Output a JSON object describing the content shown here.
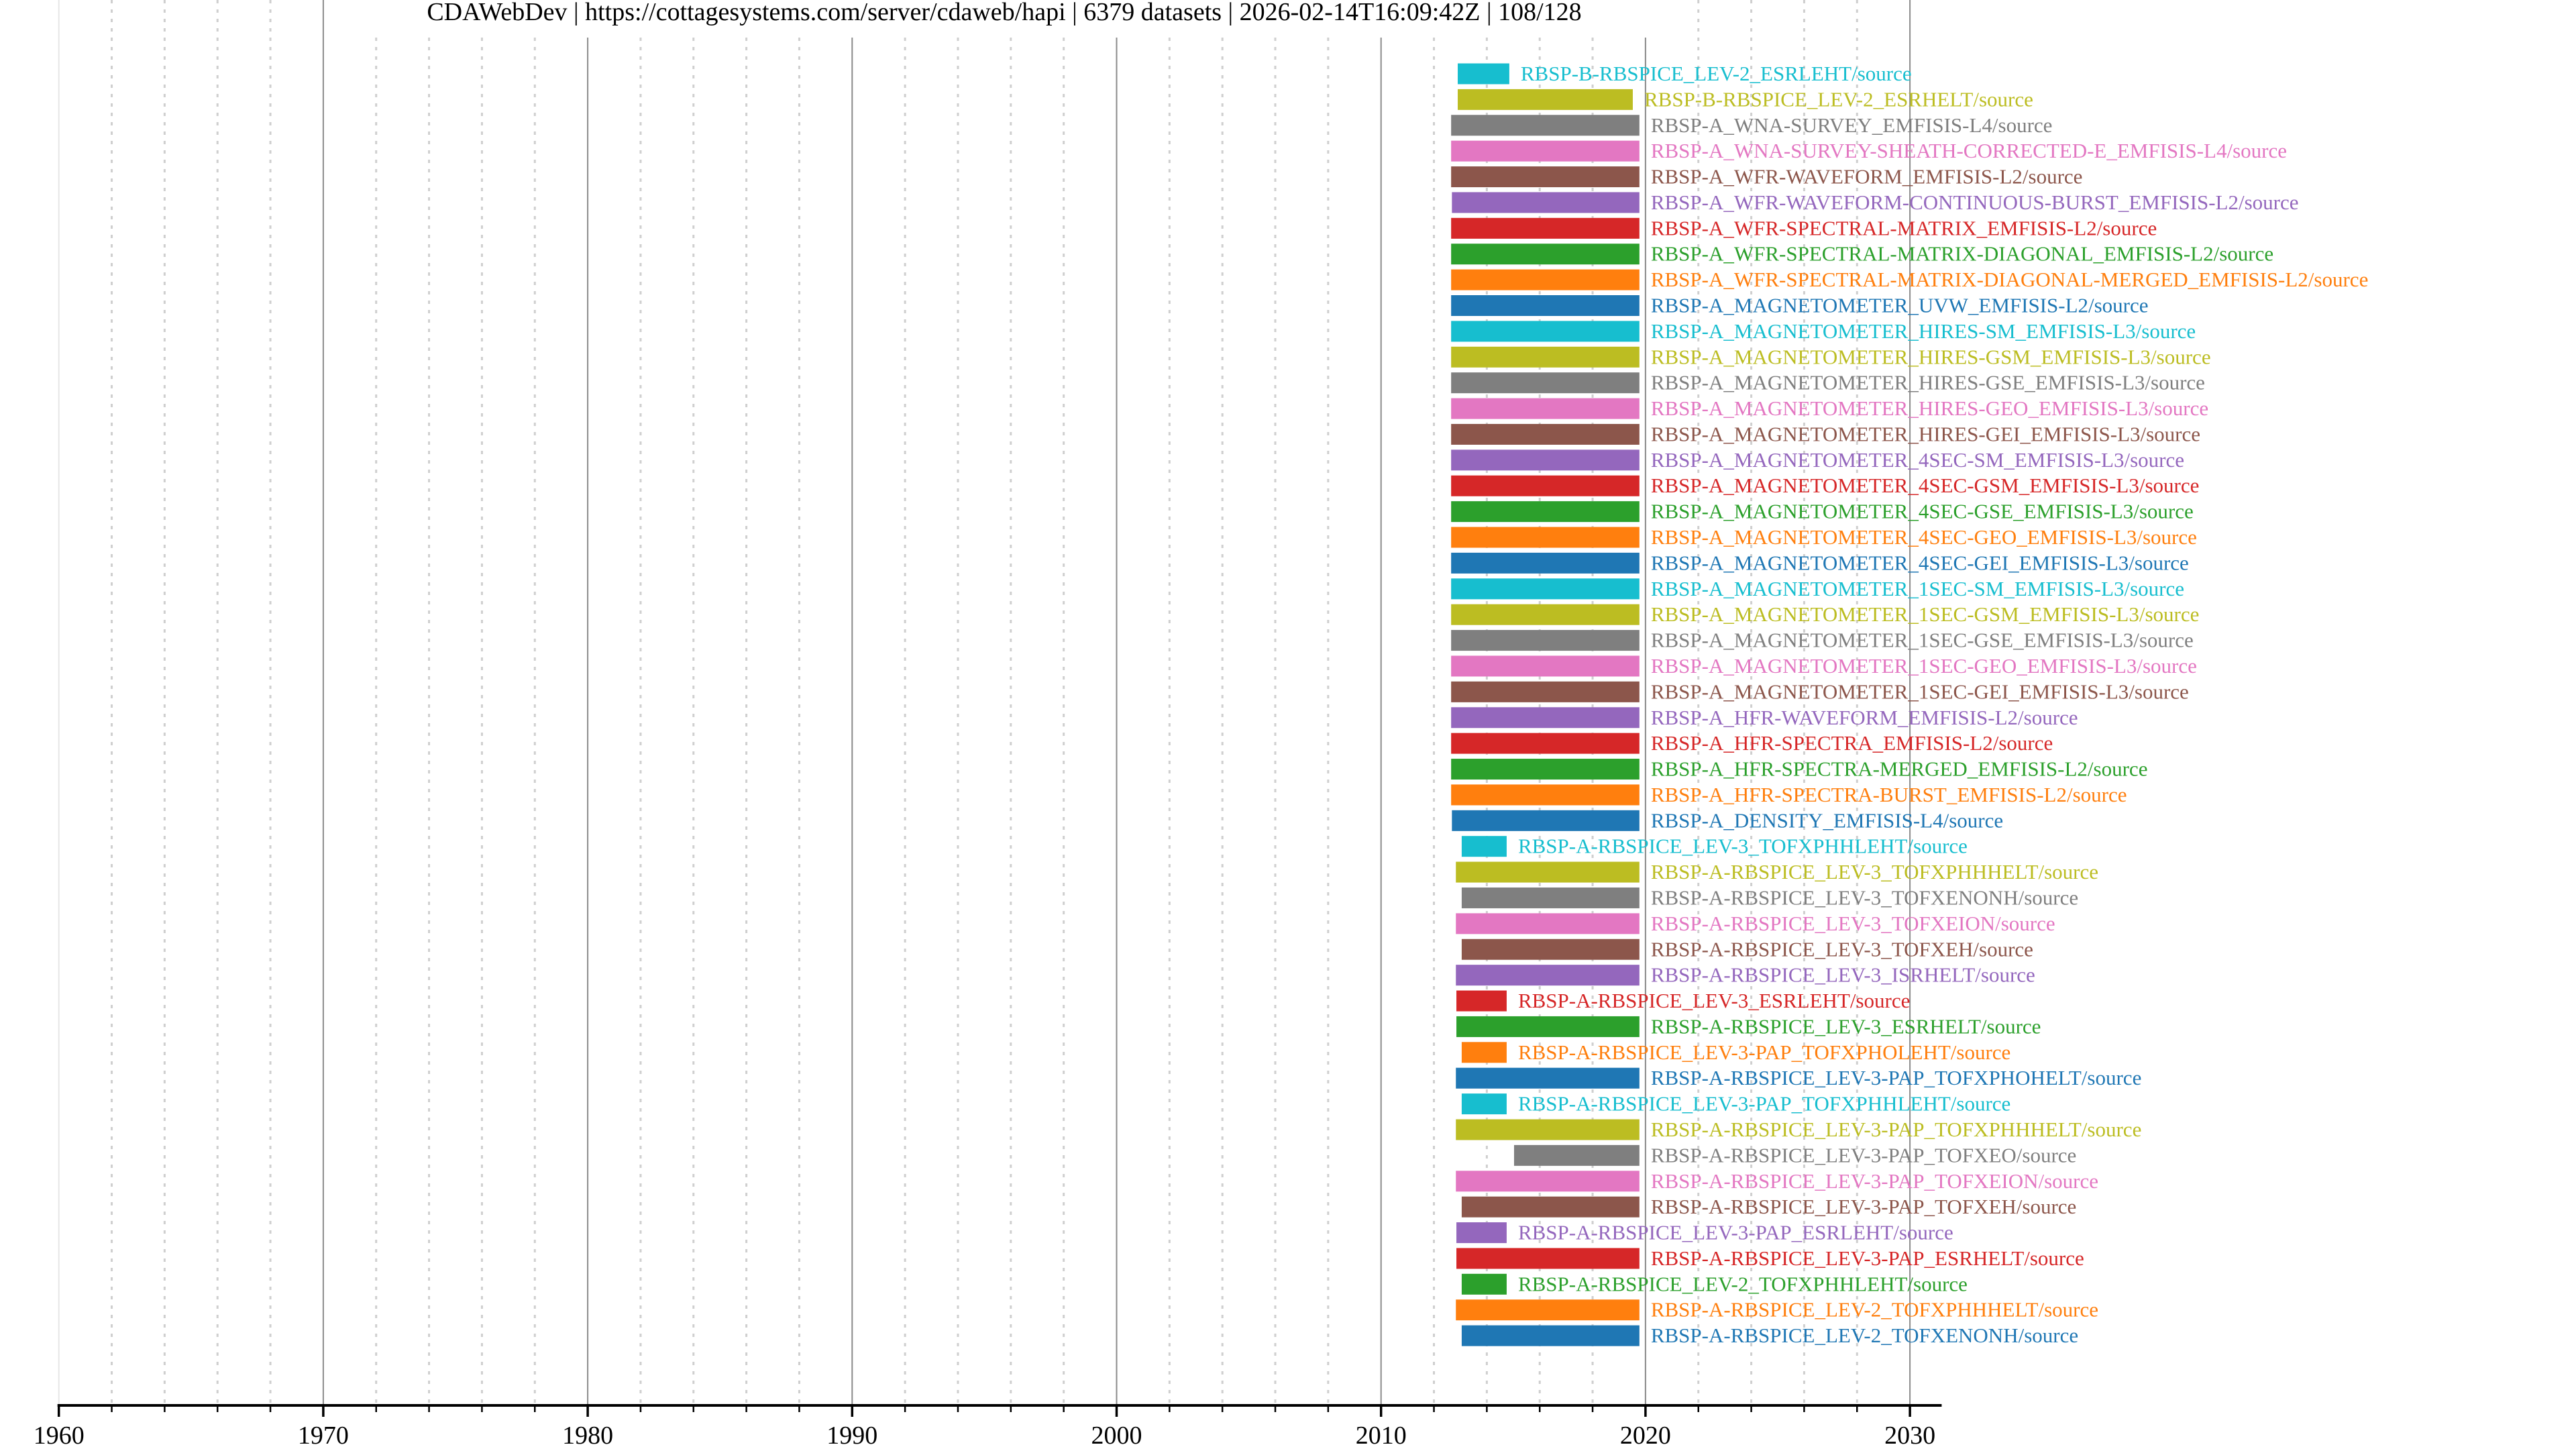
{
  "chart_data": {
    "type": "timeline",
    "title": "CDAWebDev | https://cottagesystems.com/server/cdaweb/hapi | 6379 datasets | 2026-02-14T16:09:42Z | 108/128",
    "xlabel": "",
    "ylabel": "",
    "xlim": [
      1960,
      2031.2
    ],
    "x_major_ticks": [
      1960,
      1970,
      1980,
      1990,
      2000,
      2010,
      2020,
      2030
    ],
    "x_tick_labels": [
      "1960",
      "1970",
      "1980",
      "1990",
      "2000",
      "2010",
      "2020",
      "2030"
    ],
    "x_minor_step": 2,
    "grid": true,
    "palette": [
      "#1f77b4",
      "#ff7f0e",
      "#2ca02c",
      "#d62728",
      "#9467bd",
      "#8c564b",
      "#e377c2",
      "#7f7f7f",
      "#bcbd22",
      "#17becf"
    ],
    "datasets": [
      {
        "name": "RBSP-B-RBSPICE_LEV-2_ESRLEHT/source",
        "start": 2012.9,
        "end": 2014.85
      },
      {
        "name": "RBSP-B-RBSPICE_LEV-2_ESRHELT/source",
        "start": 2012.9,
        "end": 2019.52
      },
      {
        "name": "RBSP-A_WNA-SURVEY_EMFISIS-L4/source",
        "start": 2012.65,
        "end": 2019.77
      },
      {
        "name": "RBSP-A_WNA-SURVEY-SHEATH-CORRECTED-E_EMFISIS-L4/source",
        "start": 2012.65,
        "end": 2019.77
      },
      {
        "name": "RBSP-A_WFR-WAVEFORM_EMFISIS-L2/source",
        "start": 2012.65,
        "end": 2019.77
      },
      {
        "name": "RBSP-A_WFR-WAVEFORM-CONTINUOUS-BURST_EMFISIS-L2/source",
        "start": 2012.68,
        "end": 2019.77
      },
      {
        "name": "RBSP-A_WFR-SPECTRAL-MATRIX_EMFISIS-L2/source",
        "start": 2012.65,
        "end": 2019.77
      },
      {
        "name": "RBSP-A_WFR-SPECTRAL-MATRIX-DIAGONAL_EMFISIS-L2/source",
        "start": 2012.65,
        "end": 2019.77
      },
      {
        "name": "RBSP-A_WFR-SPECTRAL-MATRIX-DIAGONAL-MERGED_EMFISIS-L2/source",
        "start": 2012.65,
        "end": 2019.77
      },
      {
        "name": "RBSP-A_MAGNETOMETER_UVW_EMFISIS-L2/source",
        "start": 2012.65,
        "end": 2019.77
      },
      {
        "name": "RBSP-A_MAGNETOMETER_HIRES-SM_EMFISIS-L3/source",
        "start": 2012.65,
        "end": 2019.77
      },
      {
        "name": "RBSP-A_MAGNETOMETER_HIRES-GSM_EMFISIS-L3/source",
        "start": 2012.65,
        "end": 2019.77
      },
      {
        "name": "RBSP-A_MAGNETOMETER_HIRES-GSE_EMFISIS-L3/source",
        "start": 2012.65,
        "end": 2019.77
      },
      {
        "name": "RBSP-A_MAGNETOMETER_HIRES-GEO_EMFISIS-L3/source",
        "start": 2012.65,
        "end": 2019.77
      },
      {
        "name": "RBSP-A_MAGNETOMETER_HIRES-GEI_EMFISIS-L3/source",
        "start": 2012.65,
        "end": 2019.77
      },
      {
        "name": "RBSP-A_MAGNETOMETER_4SEC-SM_EMFISIS-L3/source",
        "start": 2012.65,
        "end": 2019.77
      },
      {
        "name": "RBSP-A_MAGNETOMETER_4SEC-GSM_EMFISIS-L3/source",
        "start": 2012.65,
        "end": 2019.77
      },
      {
        "name": "RBSP-A_MAGNETOMETER_4SEC-GSE_EMFISIS-L3/source",
        "start": 2012.65,
        "end": 2019.77
      },
      {
        "name": "RBSP-A_MAGNETOMETER_4SEC-GEO_EMFISIS-L3/source",
        "start": 2012.65,
        "end": 2019.77
      },
      {
        "name": "RBSP-A_MAGNETOMETER_4SEC-GEI_EMFISIS-L3/source",
        "start": 2012.65,
        "end": 2019.77
      },
      {
        "name": "RBSP-A_MAGNETOMETER_1SEC-SM_EMFISIS-L3/source",
        "start": 2012.65,
        "end": 2019.77
      },
      {
        "name": "RBSP-A_MAGNETOMETER_1SEC-GSM_EMFISIS-L3/source",
        "start": 2012.65,
        "end": 2019.77
      },
      {
        "name": "RBSP-A_MAGNETOMETER_1SEC-GSE_EMFISIS-L3/source",
        "start": 2012.65,
        "end": 2019.77
      },
      {
        "name": "RBSP-A_MAGNETOMETER_1SEC-GEO_EMFISIS-L3/source",
        "start": 2012.65,
        "end": 2019.77
      },
      {
        "name": "RBSP-A_MAGNETOMETER_1SEC-GEI_EMFISIS-L3/source",
        "start": 2012.65,
        "end": 2019.77
      },
      {
        "name": "RBSP-A_HFR-WAVEFORM_EMFISIS-L2/source",
        "start": 2012.65,
        "end": 2019.77
      },
      {
        "name": "RBSP-A_HFR-SPECTRA_EMFISIS-L2/source",
        "start": 2012.65,
        "end": 2019.77
      },
      {
        "name": "RBSP-A_HFR-SPECTRA-MERGED_EMFISIS-L2/source",
        "start": 2012.65,
        "end": 2019.77
      },
      {
        "name": "RBSP-A_HFR-SPECTRA-BURST_EMFISIS-L2/source",
        "start": 2012.65,
        "end": 2019.77
      },
      {
        "name": "RBSP-A_DENSITY_EMFISIS-L4/source",
        "start": 2012.68,
        "end": 2019.77
      },
      {
        "name": "RBSP-A-RBSPICE_LEV-3_TOFXPHHLEHT/source",
        "start": 2013.05,
        "end": 2014.75
      },
      {
        "name": "RBSP-A-RBSPICE_LEV-3_TOFXPHHHELT/source",
        "start": 2012.83,
        "end": 2019.77
      },
      {
        "name": "RBSP-A-RBSPICE_LEV-3_TOFXENONH/source",
        "start": 2013.05,
        "end": 2019.77
      },
      {
        "name": "RBSP-A-RBSPICE_LEV-3_TOFXEION/source",
        "start": 2012.83,
        "end": 2019.77
      },
      {
        "name": "RBSP-A-RBSPICE_LEV-3_TOFXEH/source",
        "start": 2013.05,
        "end": 2019.77
      },
      {
        "name": "RBSP-A-RBSPICE_LEV-3_ISRHELT/source",
        "start": 2012.83,
        "end": 2019.77
      },
      {
        "name": "RBSP-A-RBSPICE_LEV-3_ESRLEHT/source",
        "start": 2012.85,
        "end": 2014.75
      },
      {
        "name": "RBSP-A-RBSPICE_LEV-3_ESRHELT/source",
        "start": 2012.85,
        "end": 2019.77
      },
      {
        "name": "RBSP-A-RBSPICE_LEV-3-PAP_TOFXPHOLEHT/source",
        "start": 2013.05,
        "end": 2014.75
      },
      {
        "name": "RBSP-A-RBSPICE_LEV-3-PAP_TOFXPHOHELT/source",
        "start": 2012.83,
        "end": 2019.77
      },
      {
        "name": "RBSP-A-RBSPICE_LEV-3-PAP_TOFXPHHLEHT/source",
        "start": 2013.05,
        "end": 2014.75
      },
      {
        "name": "RBSP-A-RBSPICE_LEV-3-PAP_TOFXPHHHELT/source",
        "start": 2012.83,
        "end": 2019.77
      },
      {
        "name": "RBSP-A-RBSPICE_LEV-3-PAP_TOFXEO/source",
        "start": 2015.03,
        "end": 2019.77
      },
      {
        "name": "RBSP-A-RBSPICE_LEV-3-PAP_TOFXEION/source",
        "start": 2012.83,
        "end": 2019.77
      },
      {
        "name": "RBSP-A-RBSPICE_LEV-3-PAP_TOFXEH/source",
        "start": 2013.05,
        "end": 2019.77
      },
      {
        "name": "RBSP-A-RBSPICE_LEV-3-PAP_ESRLEHT/source",
        "start": 2012.85,
        "end": 2014.75
      },
      {
        "name": "RBSP-A-RBSPICE_LEV-3-PAP_ESRHELT/source",
        "start": 2012.85,
        "end": 2019.77
      },
      {
        "name": "RBSP-A-RBSPICE_LEV-2_TOFXPHHLEHT/source",
        "start": 2013.05,
        "end": 2014.75
      },
      {
        "name": "RBSP-A-RBSPICE_LEV-2_TOFXPHHHELT/source",
        "start": 2012.83,
        "end": 2019.77
      },
      {
        "name": "RBSP-A-RBSPICE_LEV-2_TOFXENONH/source",
        "start": 2013.05,
        "end": 2019.77
      }
    ]
  }
}
